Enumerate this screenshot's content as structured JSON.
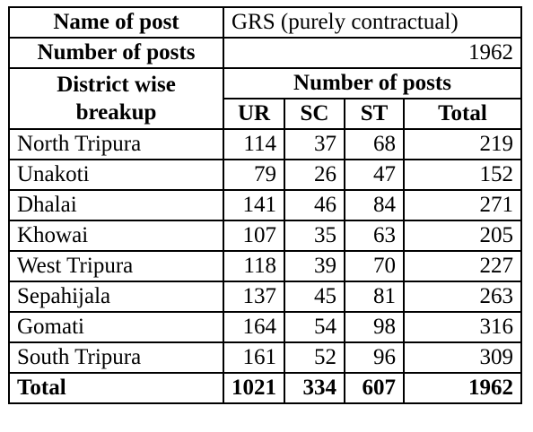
{
  "header": {
    "name_of_post_label": "Name of post",
    "name_of_post_value": "GRS (purely contractual)",
    "number_of_posts_label": "Number of posts",
    "number_of_posts_value": "1962",
    "district_label_line1": "District wise",
    "district_label_line2": "breakup",
    "number_of_posts_group": "Number of posts",
    "col_ur": "UR",
    "col_sc": "SC",
    "col_st": "ST",
    "col_total": "Total"
  },
  "rows": [
    {
      "district": "North Tripura",
      "ur": "114",
      "sc": "37",
      "st": "68",
      "total": "219"
    },
    {
      "district": "Unakoti",
      "ur": "79",
      "sc": "26",
      "st": "47",
      "total": "152"
    },
    {
      "district": "Dhalai",
      "ur": "141",
      "sc": "46",
      "st": "84",
      "total": "271"
    },
    {
      "district": "Khowai",
      "ur": "107",
      "sc": "35",
      "st": "63",
      "total": "205"
    },
    {
      "district": "West Tripura",
      "ur": "118",
      "sc": "39",
      "st": "70",
      "total": "227"
    },
    {
      "district": "Sepahijala",
      "ur": "137",
      "sc": "45",
      "st": "81",
      "total": "263"
    },
    {
      "district": "Gomati",
      "ur": "164",
      "sc": "54",
      "st": "98",
      "total": "316"
    },
    {
      "district": "South Tripura",
      "ur": "161",
      "sc": "52",
      "st": "96",
      "total": "309"
    }
  ],
  "totals": {
    "label": "Total",
    "ur": "1021",
    "sc": "334",
    "st": "607",
    "total": "1962"
  }
}
